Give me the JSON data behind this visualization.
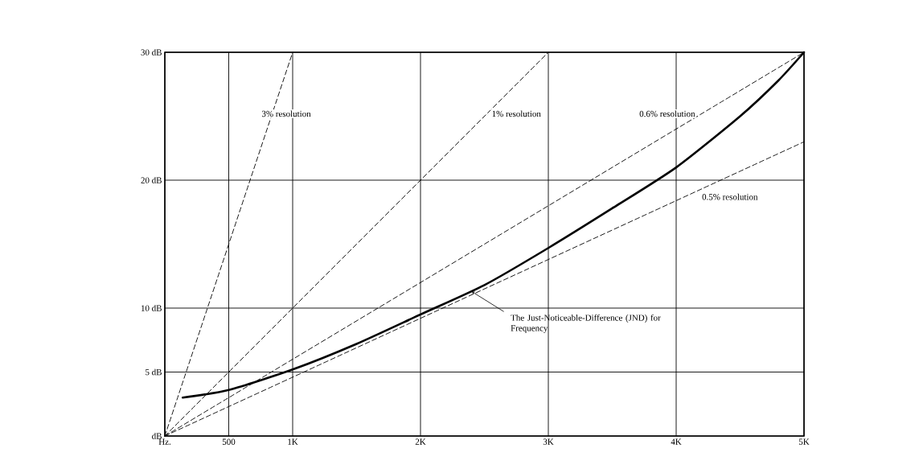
{
  "chart_data": {
    "type": "line",
    "grid": true,
    "xlim": [
      0,
      5000
    ],
    "ylim": [
      0,
      30
    ],
    "xticks": [
      {
        "value": 0,
        "label": "Hz."
      },
      {
        "value": 500,
        "label": "500"
      },
      {
        "value": 1000,
        "label": "1K"
      },
      {
        "value": 2000,
        "label": "2K"
      },
      {
        "value": 3000,
        "label": "3K"
      },
      {
        "value": 4000,
        "label": "4K"
      },
      {
        "value": 5000,
        "label": "5K"
      }
    ],
    "yticks": [
      {
        "value": 0,
        "label": "dB"
      },
      {
        "value": 5,
        "label": "5 dB"
      },
      {
        "value": 10,
        "label": "10 dB"
      },
      {
        "value": 20,
        "label": "20 dB"
      },
      {
        "value": 30,
        "label": "30 dB"
      }
    ],
    "series": [
      {
        "name": "3% resolution",
        "color": "#000000",
        "line_style": "dashed",
        "x": [
          0,
          1000
        ],
        "values": [
          0,
          30
        ]
      },
      {
        "name": "1% resolution",
        "color": "#000000",
        "line_style": "dashed",
        "x": [
          0,
          3000
        ],
        "values": [
          0,
          30
        ]
      },
      {
        "name": "0.6% resolution",
        "color": "#000000",
        "line_style": "dashed",
        "x": [
          0,
          5000
        ],
        "values": [
          0,
          30
        ]
      },
      {
        "name": "0.5% resolution",
        "color": "#000000",
        "line_style": "dashed",
        "x": [
          0,
          5000
        ],
        "values": [
          0,
          23
        ]
      },
      {
        "color": "#000000",
        "line_style": "solid",
        "x": [
          140,
          500,
          1000,
          1500,
          2000,
          2500,
          3000,
          3500,
          4000,
          4500,
          4800,
          5000
        ],
        "values": [
          3.0,
          3.6,
          5.2,
          7.2,
          9.5,
          11.8,
          14.7,
          17.8,
          21.0,
          25.0,
          27.8,
          30.0
        ]
      }
    ],
    "annotations": [
      {
        "text": "The Just-Noticeable-Difference (JND) for Frequency",
        "x": 2400,
        "y": 11.3
      }
    ]
  }
}
